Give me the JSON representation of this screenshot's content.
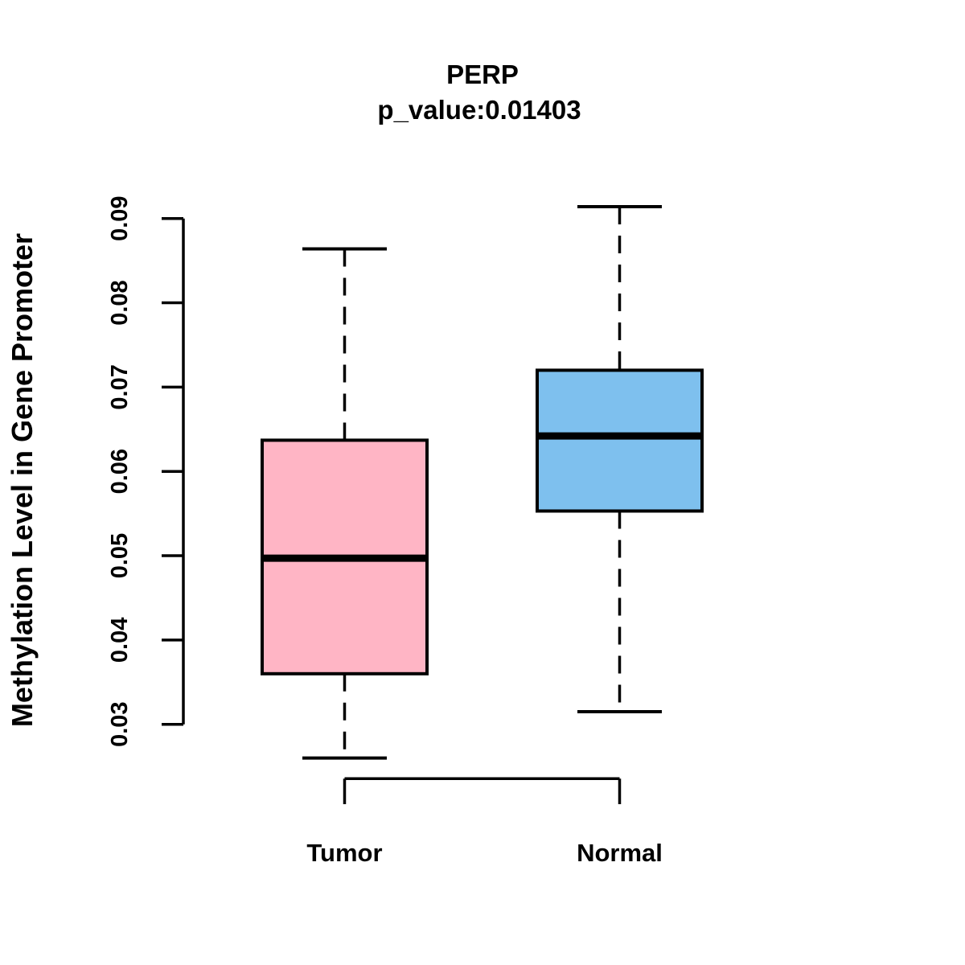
{
  "chart_data": {
    "type": "boxplot",
    "title": "PERP",
    "subtitle": "p_value:0.01403",
    "ylabel": "Methylation Level in Gene Promoter",
    "xlabel": "",
    "categories": [
      "Tumor",
      "Normal"
    ],
    "ylim": [
      0.03,
      0.09
    ],
    "y_ticks": [
      "0.03",
      "0.04",
      "0.05",
      "0.06",
      "0.07",
      "0.08",
      "0.09"
    ],
    "grid": false,
    "legend": "none",
    "whisker_style": "dashed",
    "series": [
      {
        "name": "Tumor",
        "color": "#FFB5C5",
        "whisker_low": 0.026,
        "q1": 0.036,
        "median": 0.0497,
        "q3": 0.0637,
        "whisker_high": 0.0864
      },
      {
        "name": "Normal",
        "color": "#7EC0EE",
        "whisker_low": 0.0315,
        "q1": 0.0553,
        "median": 0.0642,
        "q3": 0.072,
        "whisker_high": 0.0914
      }
    ],
    "colors": {
      "box_border": "#000000",
      "median_line": "#000000",
      "axis": "#000000",
      "background": "#ffffff"
    }
  }
}
